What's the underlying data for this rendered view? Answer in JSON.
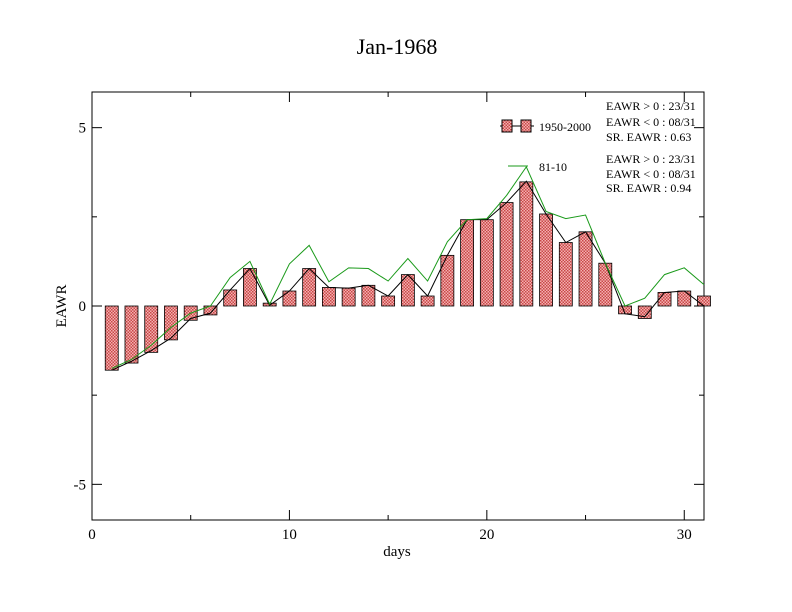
{
  "chart_data": {
    "type": "bar",
    "title": "Jan-1968",
    "xlabel": "days",
    "ylabel": "EAWR",
    "xlim": [
      0,
      31
    ],
    "ylim": [
      -6,
      6
    ],
    "x_ticks": [
      0,
      10,
      20,
      30
    ],
    "y_ticks": [
      -5,
      0,
      5
    ],
    "grid": false,
    "legend_position": "top-right",
    "x": [
      1,
      2,
      3,
      4,
      5,
      6,
      7,
      8,
      9,
      10,
      11,
      12,
      13,
      14,
      15,
      16,
      17,
      18,
      19,
      20,
      21,
      22,
      23,
      24,
      25,
      26,
      27,
      28,
      29,
      30,
      31
    ],
    "series": [
      {
        "name": "1950-2000",
        "style": "bar",
        "color": "#e88a8a",
        "values": [
          -1.8,
          -1.6,
          -1.3,
          -0.95,
          -0.4,
          -0.25,
          0.45,
          1.05,
          0.08,
          0.42,
          1.05,
          0.52,
          0.5,
          0.58,
          0.28,
          0.88,
          0.28,
          1.42,
          2.42,
          2.42,
          2.9,
          3.48,
          2.58,
          1.78,
          2.08,
          1.2,
          -0.22,
          -0.35,
          0.38,
          0.42,
          0.28
        ]
      },
      {
        "name": "",
        "style": "line",
        "color": "#000000",
        "values": [
          -1.8,
          -1.55,
          -1.25,
          -0.9,
          -0.35,
          -0.2,
          0.45,
          1.05,
          0.02,
          0.42,
          1.05,
          0.52,
          0.5,
          0.58,
          0.28,
          0.88,
          0.28,
          1.42,
          2.42,
          2.42,
          2.9,
          3.5,
          2.58,
          1.78,
          2.08,
          1.2,
          -0.22,
          -0.3,
          0.38,
          0.42,
          0.0
        ]
      },
      {
        "name": "81-10",
        "style": "line",
        "color": "#1a9a1a",
        "values": [
          -1.75,
          -1.5,
          -1.1,
          -0.6,
          -0.2,
          0.0,
          0.8,
          1.25,
          0.05,
          1.18,
          1.7,
          0.68,
          1.07,
          1.05,
          0.7,
          1.33,
          0.7,
          1.8,
          2.42,
          2.45,
          3.1,
          3.9,
          2.65,
          2.45,
          2.55,
          1.2,
          0.0,
          0.22,
          0.88,
          1.07,
          0.6
        ]
      }
    ],
    "annotations": {
      "block1": [
        "EAWR > 0 : 23/31",
        "EAWR < 0 : 08/31",
        "SR. EAWR :  0.63"
      ],
      "block2": [
        "EAWR > 0 : 23/31",
        "EAWR < 0 : 08/31",
        "SR. EAWR :  0.94"
      ]
    }
  }
}
